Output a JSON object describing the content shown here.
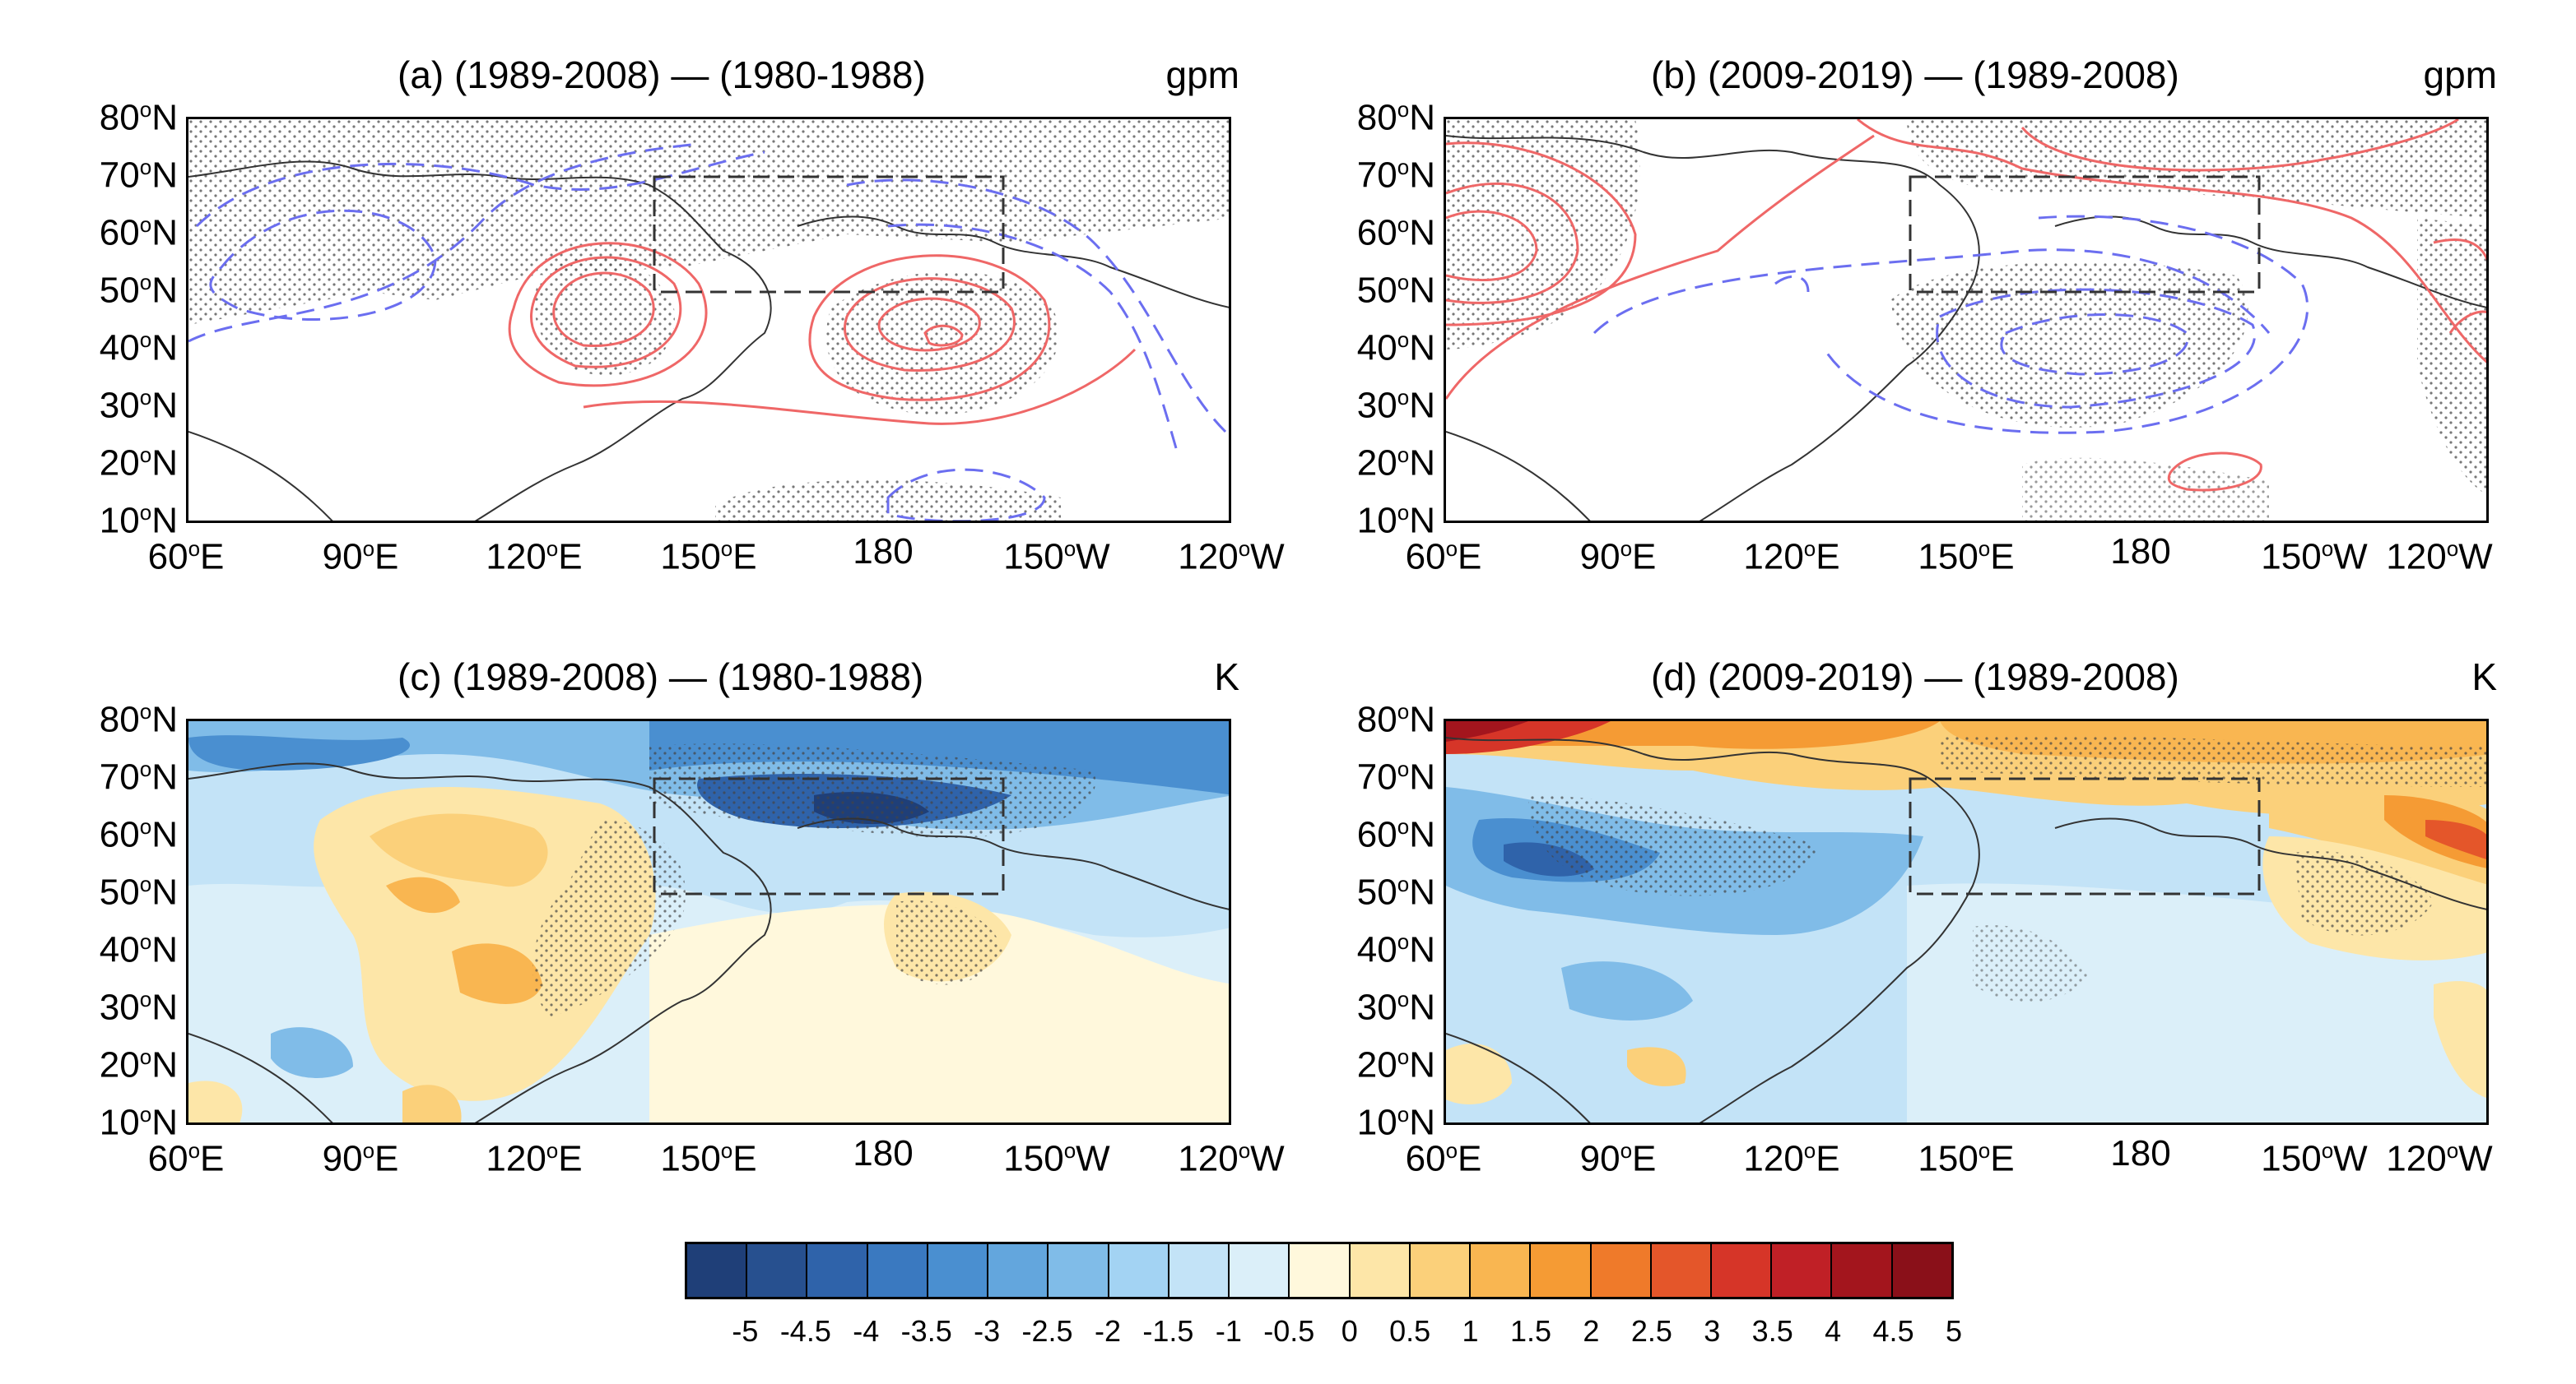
{
  "panels": [
    {
      "id": "a",
      "title": "(a) (1989-2008) — (1980-1988)",
      "unit": "gpm",
      "field": "contours"
    },
    {
      "id": "b",
      "title": "(b) (2009-2019) — (1989-2008)",
      "unit": "gpm",
      "field": "contours"
    },
    {
      "id": "c",
      "title": "(c) (1989-2008) — (1980-1988)",
      "unit": "K",
      "field": "shaded"
    },
    {
      "id": "d",
      "title": "(d)  (2009-2019) — (1989-2008)",
      "unit": "K",
      "field": "shaded"
    }
  ],
  "y_ticks": [
    {
      "deg": "80",
      "hemi": "N"
    },
    {
      "deg": "70",
      "hemi": "N"
    },
    {
      "deg": "60",
      "hemi": "N"
    },
    {
      "deg": "50",
      "hemi": "N"
    },
    {
      "deg": "40",
      "hemi": "N"
    },
    {
      "deg": "30",
      "hemi": "N"
    },
    {
      "deg": "20",
      "hemi": "N"
    },
    {
      "deg": "10",
      "hemi": "N"
    }
  ],
  "x_ticks": [
    {
      "deg": "60",
      "hemi": "E"
    },
    {
      "deg": "90",
      "hemi": "E"
    },
    {
      "deg": "120",
      "hemi": "E"
    },
    {
      "deg": "150",
      "hemi": "E"
    },
    {
      "deg": "180",
      "hemi": ""
    },
    {
      "deg": "150",
      "hemi": "W"
    },
    {
      "deg": "120",
      "hemi": "W"
    }
  ],
  "colorbar": {
    "colors": [
      "#1f3f78",
      "#27508f",
      "#2f63aa",
      "#3a79c0",
      "#4a8fd0",
      "#63a6dd",
      "#80bce8",
      "#a3d3f3",
      "#c3e3f7",
      "#dbeff9",
      "#fff8dc",
      "#fde6a8",
      "#fbd07a",
      "#f9b651",
      "#f59b34",
      "#ef7a2a",
      "#e4562a",
      "#d63528",
      "#c02026",
      "#a3151d",
      "#8a1019"
    ],
    "labels": [
      "-5",
      "-4.5",
      "-4",
      "-3.5",
      "-3",
      "-2.5",
      "-2",
      "-1.5",
      "-1",
      "-0.5",
      "0",
      "0.5",
      "1",
      "1.5",
      "2",
      "2.5",
      "3",
      "3.5",
      "4",
      "4.5",
      "5"
    ]
  }
}
